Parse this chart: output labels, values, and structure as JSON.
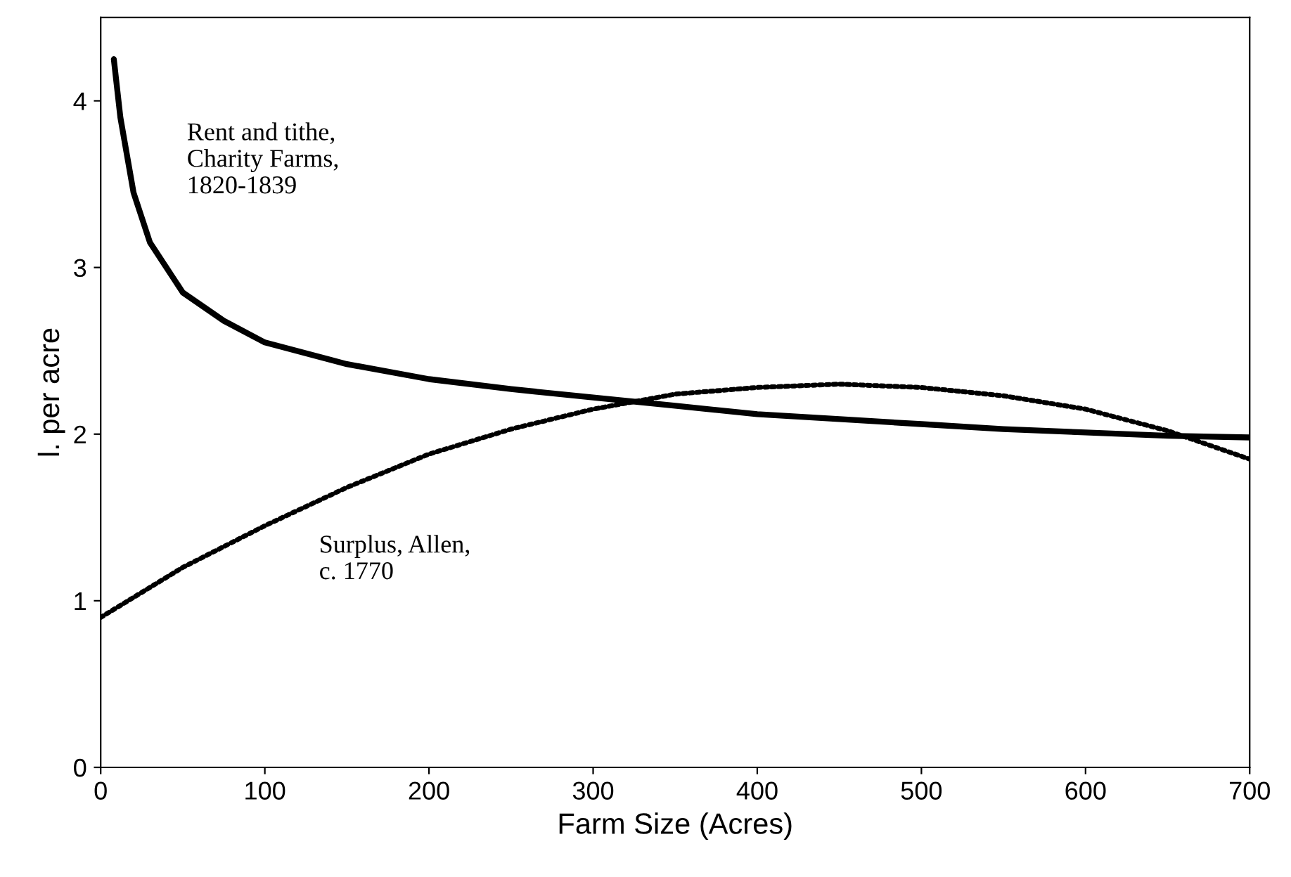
{
  "chart_data": {
    "type": "line",
    "xlabel": "Farm Size (Acres)",
    "ylabel": "l. per acre",
    "xlim": [
      0,
      700
    ],
    "ylim": [
      0,
      4.5
    ],
    "xticks": [
      0,
      100,
      200,
      300,
      400,
      500,
      600,
      700
    ],
    "yticks": [
      0,
      1,
      2,
      3,
      4
    ],
    "grid": false,
    "legend": false,
    "series": [
      {
        "name": "Rent and tithe, Charity Farms, 1820-1839",
        "color": "#000000",
        "line_style": "solid",
        "x": [
          8,
          12,
          20,
          30,
          50,
          75,
          100,
          150,
          200,
          250,
          300,
          350,
          400,
          450,
          500,
          550,
          600,
          650,
          700
        ],
        "values": [
          4.25,
          3.9,
          3.45,
          3.15,
          2.85,
          2.68,
          2.55,
          2.42,
          2.33,
          2.27,
          2.22,
          2.17,
          2.12,
          2.09,
          2.06,
          2.03,
          2.01,
          1.99,
          1.98
        ]
      },
      {
        "name": "Surplus, Allen, c. 1770",
        "color": "#000000",
        "line_style": "dotted",
        "x": [
          0,
          50,
          100,
          150,
          200,
          250,
          300,
          350,
          400,
          450,
          500,
          550,
          600,
          650,
          700
        ],
        "values": [
          0.9,
          1.2,
          1.45,
          1.68,
          1.88,
          2.03,
          2.15,
          2.24,
          2.28,
          2.3,
          2.28,
          2.23,
          2.15,
          2.02,
          1.85
        ]
      }
    ]
  }
}
